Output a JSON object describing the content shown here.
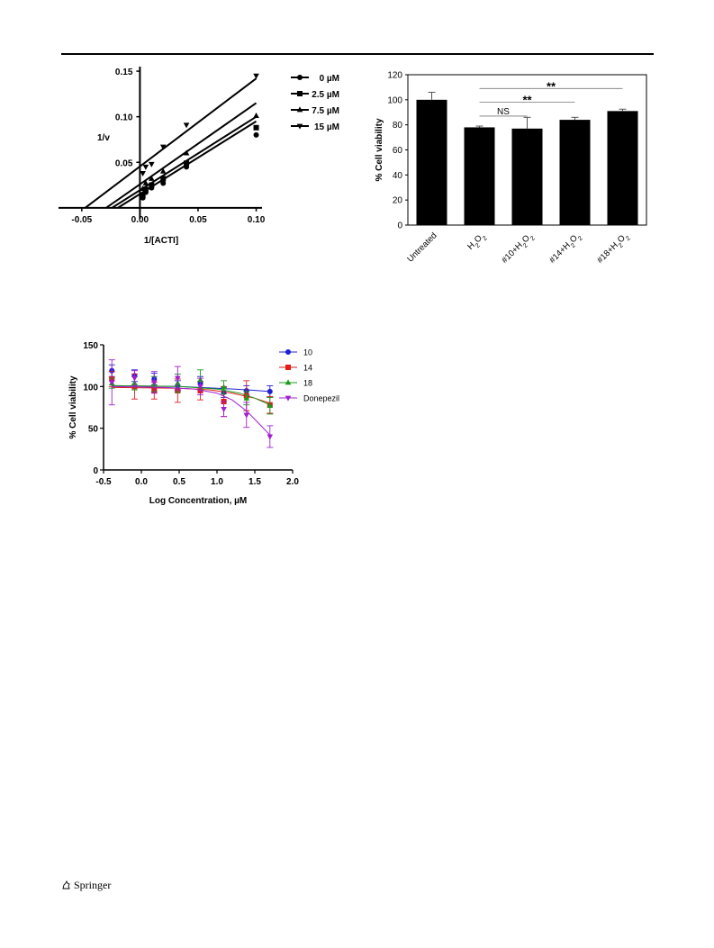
{
  "footer": {
    "publisher": "Springer",
    "logo_icon": "springer-horse-icon"
  },
  "chart_data": [
    {
      "id": "lineweaver",
      "type": "scatter",
      "title": "",
      "xlabel": "1/[ACTI]",
      "ylabel": "1/v",
      "xlim": [
        -0.07,
        0.105
      ],
      "ylim": [
        -0.012,
        0.155
      ],
      "xticks": [
        -0.05,
        0.0,
        0.05,
        0.1
      ],
      "xtick_labels": [
        "-0.05",
        "0.00",
        "0.05",
        "0.10"
      ],
      "yticks": [
        0.05,
        0.1,
        0.15
      ],
      "ytick_labels": [
        "0.05",
        "0.10",
        "0.15"
      ],
      "legend_position": "top-right",
      "series": [
        {
          "name": "0 µM",
          "marker": "circle",
          "points": [
            [
              0.0025,
              0.011
            ],
            [
              0.005,
              0.017
            ],
            [
              0.01,
              0.022
            ],
            [
              0.02,
              0.027
            ],
            [
              0.04,
              0.045
            ],
            [
              0.1,
              0.08
            ]
          ],
          "fit": [
            [
              -0.019,
              0
            ],
            [
              0.1,
              0.095
            ]
          ]
        },
        {
          "name": "2.5 µM",
          "marker": "square",
          "points": [
            [
              0.0025,
              0.014
            ],
            [
              0.005,
              0.02
            ],
            [
              0.01,
              0.025
            ],
            [
              0.02,
              0.032
            ],
            [
              0.04,
              0.049
            ],
            [
              0.1,
              0.088
            ]
          ],
          "fit": [
            [
              -0.024,
              0
            ],
            [
              0.1,
              0.1
            ]
          ]
        },
        {
          "name": "7.5 µM",
          "marker": "triangle-up",
          "points": [
            [
              0.0025,
              0.021
            ],
            [
              0.005,
              0.027
            ],
            [
              0.01,
              0.032
            ],
            [
              0.02,
              0.04
            ],
            [
              0.04,
              0.06
            ],
            [
              0.1,
              0.101
            ]
          ],
          "fit": [
            [
              -0.029,
              0
            ],
            [
              0.1,
              0.115
            ]
          ]
        },
        {
          "name": "15 µM",
          "marker": "triangle-down",
          "points": [
            [
              0.0025,
              0.038
            ],
            [
              0.005,
              0.045
            ],
            [
              0.01,
              0.048
            ],
            [
              0.02,
              0.067
            ],
            [
              0.04,
              0.091
            ],
            [
              0.1,
              0.145
            ]
          ],
          "fit": [
            [
              -0.047,
              0
            ],
            [
              0.1,
              0.142
            ]
          ]
        }
      ]
    },
    {
      "id": "bars",
      "type": "bar",
      "title": "",
      "xlabel": "",
      "ylabel": "% Cell viability",
      "ylim": [
        0,
        120
      ],
      "yticks": [
        0,
        20,
        40,
        60,
        80,
        100,
        120
      ],
      "categories": [
        {
          "main": "Untreated",
          "parts": []
        },
        {
          "main": "",
          "parts": [
            [
              "H",
              ""
            ],
            [
              "2",
              "sub"
            ],
            [
              "O",
              ""
            ],
            [
              "2",
              "sub"
            ]
          ]
        },
        {
          "main": "",
          "parts": [
            [
              "#10+H",
              ""
            ],
            [
              "2",
              "sub"
            ],
            [
              "O",
              ""
            ],
            [
              "2",
              "sub"
            ]
          ]
        },
        {
          "main": "",
          "parts": [
            [
              "#14+H",
              ""
            ],
            [
              "2",
              "sub"
            ],
            [
              "O",
              ""
            ],
            [
              "2",
              "sub"
            ]
          ]
        },
        {
          "main": "",
          "parts": [
            [
              "#18+H",
              ""
            ],
            [
              "2",
              "sub"
            ],
            [
              "O",
              ""
            ],
            [
              "2",
              "sub"
            ]
          ]
        }
      ],
      "values": [
        100,
        78,
        77,
        84,
        91
      ],
      "errors": [
        6,
        1,
        9,
        2,
        1.5
      ],
      "significance": [
        {
          "from": 1,
          "to": 2,
          "label": "NS",
          "y": 87
        },
        {
          "from": 1,
          "to": 3,
          "label": "**",
          "y": 98
        },
        {
          "from": 1,
          "to": 4,
          "label": "**",
          "y": 109
        }
      ]
    },
    {
      "id": "dose",
      "type": "line",
      "title": "",
      "xlabel": "Log Concentration, µM",
      "ylabel": "% Cell viability",
      "xlim": [
        -0.5,
        2.0
      ],
      "ylim": [
        0,
        150
      ],
      "xticks": [
        -0.5,
        0.0,
        0.5,
        1.0,
        1.5,
        2.0
      ],
      "xtick_labels": [
        "-0.5",
        "0.0",
        "0.5",
        "1.0",
        "1.5",
        "2.0"
      ],
      "yticks": [
        0,
        50,
        100,
        150
      ],
      "legend_position": "top-right",
      "x": [
        -0.39,
        -0.09,
        0.17,
        0.48,
        0.78,
        1.09,
        1.39,
        1.7
      ],
      "series": [
        {
          "name": "10",
          "color": "#1f1fd6",
          "marker": "circle",
          "values": [
            119,
            113,
            109,
            101,
            104,
            93,
            95,
            94
          ],
          "errors": [
            7,
            7,
            7,
            6,
            8,
            6,
            6,
            7
          ],
          "fit": [
            [
              -0.39,
              101
            ],
            [
              0.5,
              100
            ],
            [
              1.0,
              98
            ],
            [
              1.4,
              96
            ],
            [
              1.7,
              94
            ]
          ]
        },
        {
          "name": "14",
          "color": "#e21b1b",
          "marker": "square",
          "values": [
            109,
            100,
            95,
            95,
            95,
            82,
            89,
            78
          ],
          "errors": [
            9,
            15,
            10,
            14,
            11,
            18,
            18,
            10
          ],
          "fit": [
            [
              -0.39,
              99
            ],
            [
              0.5,
              98
            ],
            [
              0.9,
              96
            ],
            [
              1.2,
              92
            ],
            [
              1.5,
              86
            ],
            [
              1.7,
              80
            ]
          ]
        },
        {
          "name": "18",
          "color": "#1a9a1a",
          "marker": "triangle-up",
          "values": [
            104,
            104,
            103,
            104,
            108,
            99,
            86,
            77
          ],
          "errors": [
            6,
            8,
            9,
            11,
            12,
            8,
            8,
            10
          ],
          "fit": [
            [
              -0.39,
              101
            ],
            [
              0.5,
              100
            ],
            [
              1.0,
              97
            ],
            [
              1.3,
              92
            ],
            [
              1.5,
              86
            ],
            [
              1.7,
              78
            ]
          ]
        },
        {
          "name": "Donepezil",
          "color": "#a020d0",
          "marker": "triangle-down",
          "values": [
            105,
            110,
            105,
            110,
            100,
            73,
            66,
            40
          ],
          "errors": [
            27,
            9,
            13,
            14,
            10,
            9,
            15,
            13
          ],
          "fit": [
            [
              -0.39,
              100
            ],
            [
              0.3,
              99
            ],
            [
              0.7,
              97
            ],
            [
              1.0,
              92
            ],
            [
              1.2,
              84
            ],
            [
              1.4,
              70
            ],
            [
              1.55,
              56
            ],
            [
              1.7,
              42
            ]
          ]
        }
      ]
    }
  ]
}
